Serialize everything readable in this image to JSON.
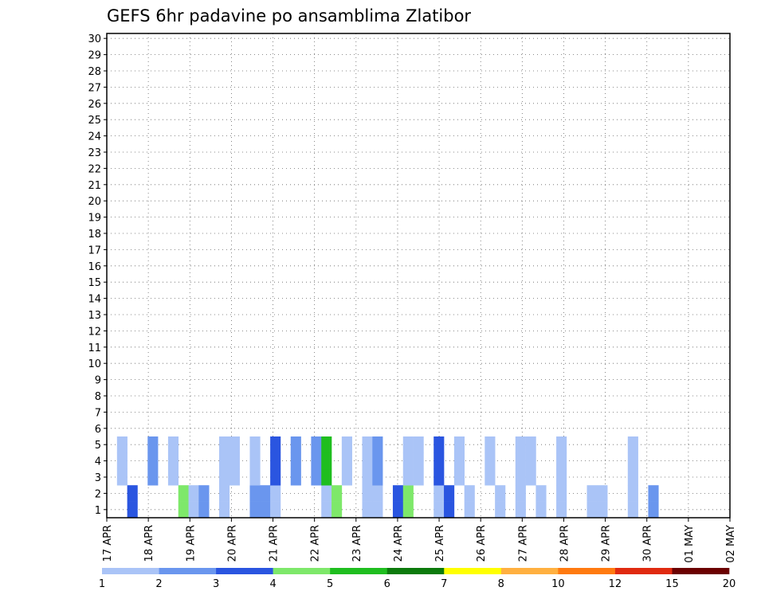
{
  "chart_data": {
    "type": "heatmap",
    "title": "GEFS 6hr padavine po ansamblima Zlatibor",
    "y_ticks": [
      "1",
      "2",
      "3",
      "4",
      "5",
      "6",
      "7",
      "8",
      "9",
      "10",
      "11",
      "12",
      "13",
      "14",
      "15",
      "16",
      "17",
      "18",
      "19",
      "20",
      "21",
      "22",
      "23",
      "24",
      "25",
      "26",
      "27",
      "28",
      "29",
      "30"
    ],
    "x_ticks": [
      "17 APR",
      "18 APR",
      "19 APR",
      "20 APR",
      "21 APR",
      "22 APR",
      "23 APR",
      "24 APR",
      "25 APR",
      "26 APR",
      "27 APR",
      "28 APR",
      "29 APR",
      "30 APR",
      "01 MAY",
      "02 MAY"
    ],
    "x_steps": 61,
    "legend_labels": [
      "1",
      "2",
      "3",
      "4",
      "5",
      "6",
      "7",
      "8",
      "10",
      "12",
      "15",
      "20"
    ],
    "legend_colors": [
      "#aac4f7",
      "#6a96ee",
      "#2a55e0",
      "#7ee86a",
      "#1fbe1f",
      "#0c7a0c",
      "#ffff00",
      "#ffb040",
      "#ff7a10",
      "#e02a10",
      "#6b0000"
    ],
    "grid": true,
    "cells": [
      [
        1,
        2,
        [
          [
            2,
            3
          ],
          [
            7,
            4
          ],
          [
            8,
            1
          ],
          [
            9,
            2
          ],
          [
            11,
            1
          ],
          [
            14,
            2
          ],
          [
            15,
            2
          ],
          [
            16,
            1
          ],
          [
            21,
            1
          ],
          [
            22,
            4
          ],
          [
            25,
            1
          ],
          [
            26,
            1
          ],
          [
            28,
            3
          ],
          [
            29,
            4
          ],
          [
            32,
            1
          ],
          [
            33,
            3
          ],
          [
            35,
            1
          ],
          [
            38,
            1
          ],
          [
            40,
            1
          ],
          [
            42,
            1
          ],
          [
            44,
            1
          ],
          [
            47,
            1
          ],
          [
            48,
            1
          ],
          [
            51,
            1
          ],
          [
            53,
            2
          ]
        ]
      ],
      [
        3,
        5,
        [
          [
            1,
            1
          ],
          [
            4,
            2
          ],
          [
            6,
            1
          ],
          [
            11,
            1
          ],
          [
            12,
            1
          ],
          [
            14,
            1
          ],
          [
            16,
            3
          ],
          [
            18,
            2
          ],
          [
            20,
            2
          ],
          [
            21,
            5
          ],
          [
            23,
            1
          ],
          [
            25,
            1
          ],
          [
            26,
            2
          ],
          [
            29,
            1
          ],
          [
            30,
            1
          ],
          [
            32,
            3
          ],
          [
            34,
            1
          ],
          [
            37,
            1
          ],
          [
            40,
            1
          ],
          [
            41,
            1
          ],
          [
            44,
            1
          ],
          [
            51,
            1
          ]
        ]
      ]
    ]
  }
}
